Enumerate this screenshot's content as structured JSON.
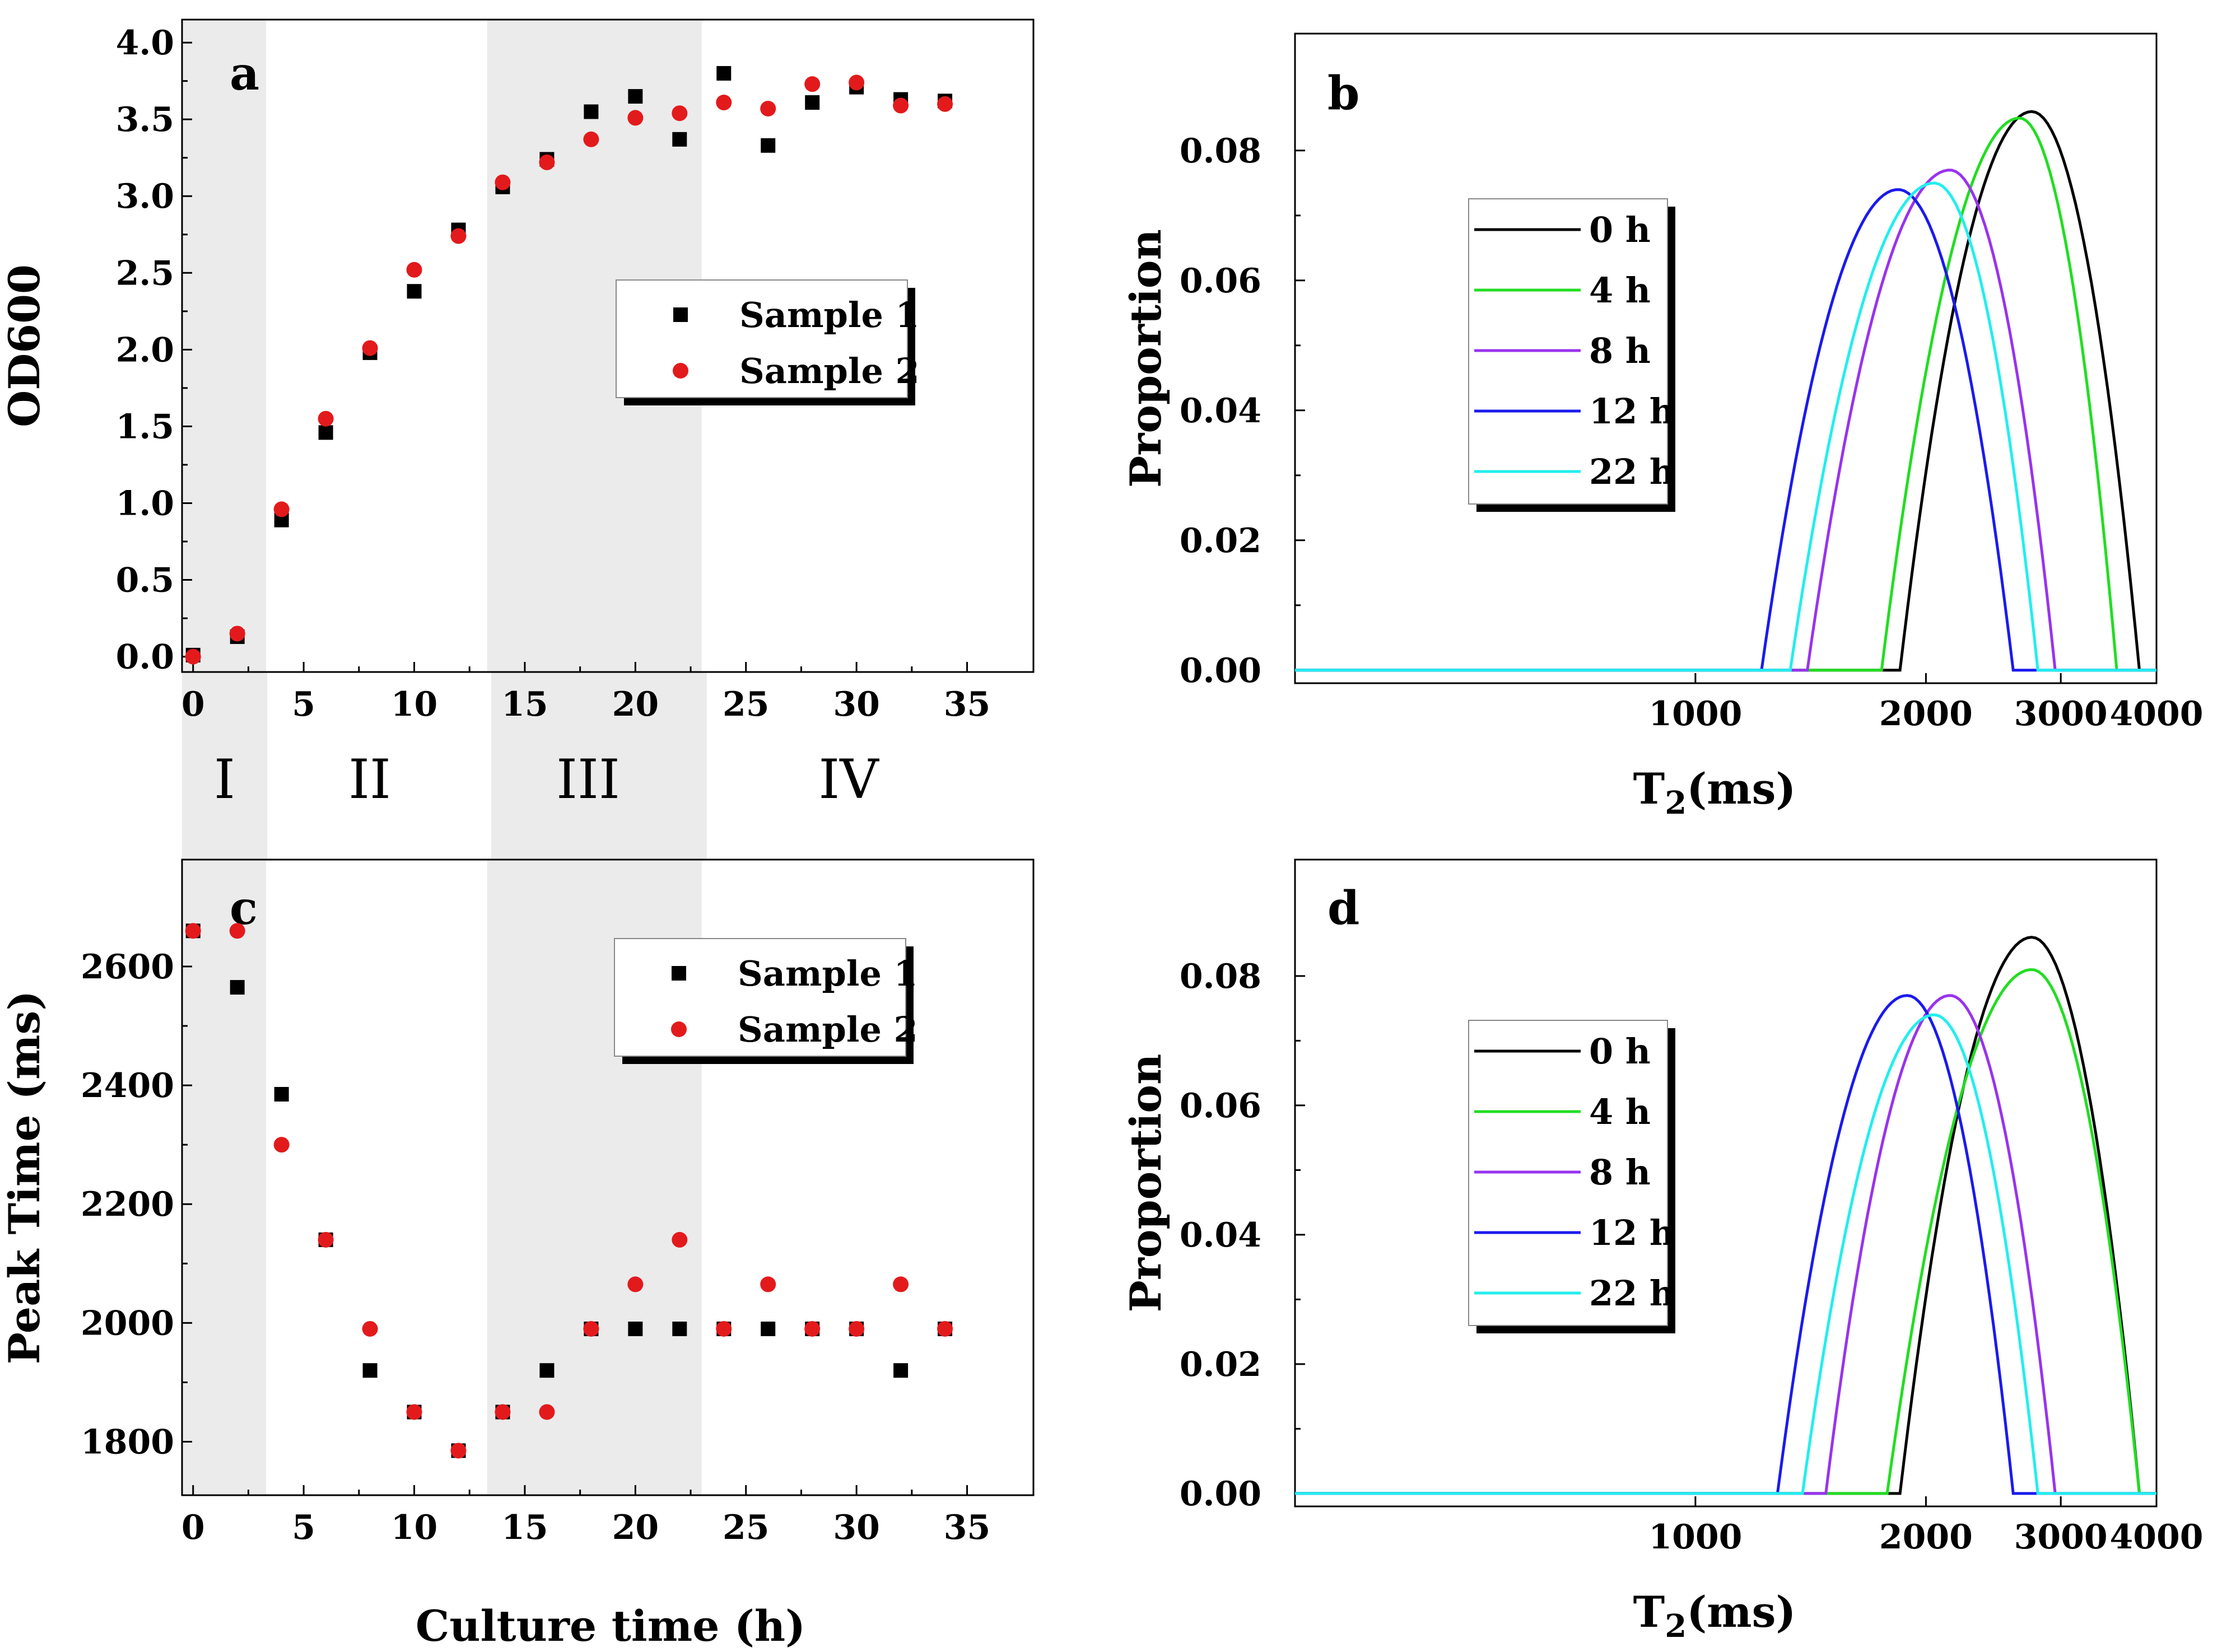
{
  "figure": {
    "phases": [
      "I",
      "II",
      "III",
      "IV"
    ],
    "x_axis_label": "Culture time (h)",
    "colors": {
      "sample1": "#000000",
      "sample2": "#e31a1c",
      "shade": "#ebebeb"
    }
  },
  "chart_data": [
    {
      "id": "a",
      "type": "scatter",
      "panel_letter": "a",
      "xlabel": "",
      "ylabel": "OD600",
      "xlim": [
        -0.5,
        38
      ],
      "ylim": [
        -0.1,
        4.15
      ],
      "xticks": [
        0,
        5,
        10,
        15,
        20,
        25,
        30,
        35
      ],
      "yticks": [
        0.0,
        0.5,
        1.0,
        1.5,
        2.0,
        2.5,
        3.0,
        3.5,
        4.0
      ],
      "ytick_labels": [
        "0.0",
        "0.5",
        "1.0",
        "1.5",
        "2.0",
        "2.5",
        "3.0",
        "3.5",
        "4.0"
      ],
      "shaded_x_ranges": [
        [
          -0.5,
          3.3
        ],
        [
          13.3,
          23.0
        ]
      ],
      "legend": [
        "Sample 1",
        "Sample 2"
      ],
      "series": [
        {
          "name": "Sample 1",
          "marker": "square",
          "color": "#000000",
          "x": [
            0,
            2,
            4,
            6,
            8,
            10,
            12,
            14,
            16,
            18,
            20,
            22,
            24,
            26,
            28,
            30,
            32,
            34
          ],
          "y": [
            0.01,
            0.13,
            0.89,
            1.46,
            1.98,
            2.38,
            2.78,
            3.06,
            3.24,
            3.55,
            3.65,
            3.37,
            3.8,
            3.33,
            3.61,
            3.71,
            3.63,
            3.62
          ]
        },
        {
          "name": "Sample 2",
          "marker": "circle",
          "color": "#e31a1c",
          "x": [
            0,
            2,
            4,
            6,
            8,
            10,
            12,
            14,
            16,
            18,
            20,
            22,
            24,
            26,
            28,
            30,
            32,
            34
          ],
          "y": [
            0.0,
            0.15,
            0.96,
            1.55,
            2.01,
            2.52,
            2.74,
            3.09,
            3.22,
            3.37,
            3.51,
            3.54,
            3.61,
            3.57,
            3.73,
            3.74,
            3.59,
            3.6
          ]
        }
      ]
    },
    {
      "id": "b",
      "type": "line",
      "panel_letter": "b",
      "xlabel_main": "T",
      "xlabel_sub": "2",
      "xlabel_unit": "(ms)",
      "ylabel": "Proportion",
      "xscale": "log",
      "xlim": [
        300,
        4000
      ],
      "ylim": [
        -0.002,
        0.098
      ],
      "xticks": [
        1000,
        2000,
        3000,
        4000
      ],
      "xtick_labels": [
        "1000",
        "2000",
        "3000",
        "4000"
      ],
      "yticks": [
        0.0,
        0.02,
        0.04,
        0.06,
        0.08
      ],
      "ytick_labels": [
        "0.00",
        "0.02",
        "0.04",
        "0.06",
        "0.08"
      ],
      "series": [
        {
          "name": "0 h",
          "color": "#000000",
          "start": 1850,
          "peak_x": 2750,
          "peak_y": 0.086,
          "end": 3800
        },
        {
          "name": "4 h",
          "color": "#22dd22",
          "start": 1750,
          "peak_x": 2650,
          "peak_y": 0.085,
          "end": 3550
        },
        {
          "name": "8 h",
          "color": "#9933ee",
          "start": 1400,
          "peak_x": 2150,
          "peak_y": 0.077,
          "end": 2950
        },
        {
          "name": "12 h",
          "color": "#1a1aee",
          "start": 1220,
          "peak_x": 1840,
          "peak_y": 0.074,
          "end": 2600
        },
        {
          "name": "22 h",
          "color": "#22eeee",
          "start": 1330,
          "peak_x": 2050,
          "peak_y": 0.075,
          "end": 2800
        }
      ]
    },
    {
      "id": "c",
      "type": "scatter",
      "panel_letter": "c",
      "xlabel": "Culture time (h)",
      "ylabel": "Peak Time (ms)",
      "xlim": [
        -0.5,
        38
      ],
      "ylim": [
        1710,
        2780
      ],
      "xticks": [
        0,
        5,
        10,
        15,
        20,
        25,
        30,
        35
      ],
      "yticks": [
        1800,
        2000,
        2200,
        2400,
        2600
      ],
      "ytick_labels": [
        "1800",
        "2000",
        "2200",
        "2400",
        "2600"
      ],
      "shaded_x_ranges": [
        [
          -0.5,
          3.3
        ],
        [
          13.3,
          23.0
        ]
      ],
      "legend": [
        "Sample 1",
        "Sample 2"
      ],
      "series": [
        {
          "name": "Sample 1",
          "marker": "square",
          "color": "#000000",
          "x": [
            0,
            2,
            4,
            6,
            8,
            10,
            12,
            14,
            16,
            18,
            20,
            22,
            24,
            26,
            28,
            30,
            32,
            34
          ],
          "y": [
            2660,
            2565,
            2385,
            2140,
            1920,
            1850,
            1785,
            1850,
            1920,
            1990,
            1990,
            1990,
            1990,
            1990,
            1990,
            1990,
            1920,
            1990
          ]
        },
        {
          "name": "Sample 2",
          "marker": "circle",
          "color": "#e31a1c",
          "x": [
            0,
            2,
            4,
            6,
            8,
            10,
            12,
            14,
            16,
            18,
            20,
            22,
            24,
            26,
            28,
            30,
            32,
            34
          ],
          "y": [
            2660,
            2660,
            2300,
            2140,
            1990,
            1850,
            1785,
            1850,
            1850,
            1990,
            2065,
            2140,
            1990,
            2065,
            1990,
            1990,
            2065,
            1990
          ]
        }
      ]
    },
    {
      "id": "d",
      "type": "line",
      "panel_letter": "d",
      "xlabel_main": "T",
      "xlabel_sub": "2",
      "xlabel_unit": "(ms)",
      "ylabel": "Proportion",
      "xscale": "log",
      "xlim": [
        300,
        4000
      ],
      "ylim": [
        -0.002,
        0.098
      ],
      "xticks": [
        1000,
        2000,
        3000,
        4000
      ],
      "xtick_labels": [
        "1000",
        "2000",
        "3000",
        "4000"
      ],
      "yticks": [
        0.0,
        0.02,
        0.04,
        0.06,
        0.08
      ],
      "ytick_labels": [
        "0.00",
        "0.02",
        "0.04",
        "0.06",
        "0.08"
      ],
      "series": [
        {
          "name": "0 h",
          "color": "#000000",
          "start": 1850,
          "peak_x": 2750,
          "peak_y": 0.086,
          "end": 3800
        },
        {
          "name": "4 h",
          "color": "#22dd22",
          "start": 1780,
          "peak_x": 2750,
          "peak_y": 0.081,
          "end": 3800
        },
        {
          "name": "8 h",
          "color": "#9933ee",
          "start": 1480,
          "peak_x": 2150,
          "peak_y": 0.077,
          "end": 2950
        },
        {
          "name": "12 h",
          "color": "#1a1aee",
          "start": 1280,
          "peak_x": 1890,
          "peak_y": 0.077,
          "end": 2600
        },
        {
          "name": "22 h",
          "color": "#22eeee",
          "start": 1380,
          "peak_x": 2050,
          "peak_y": 0.074,
          "end": 2800
        }
      ]
    }
  ]
}
